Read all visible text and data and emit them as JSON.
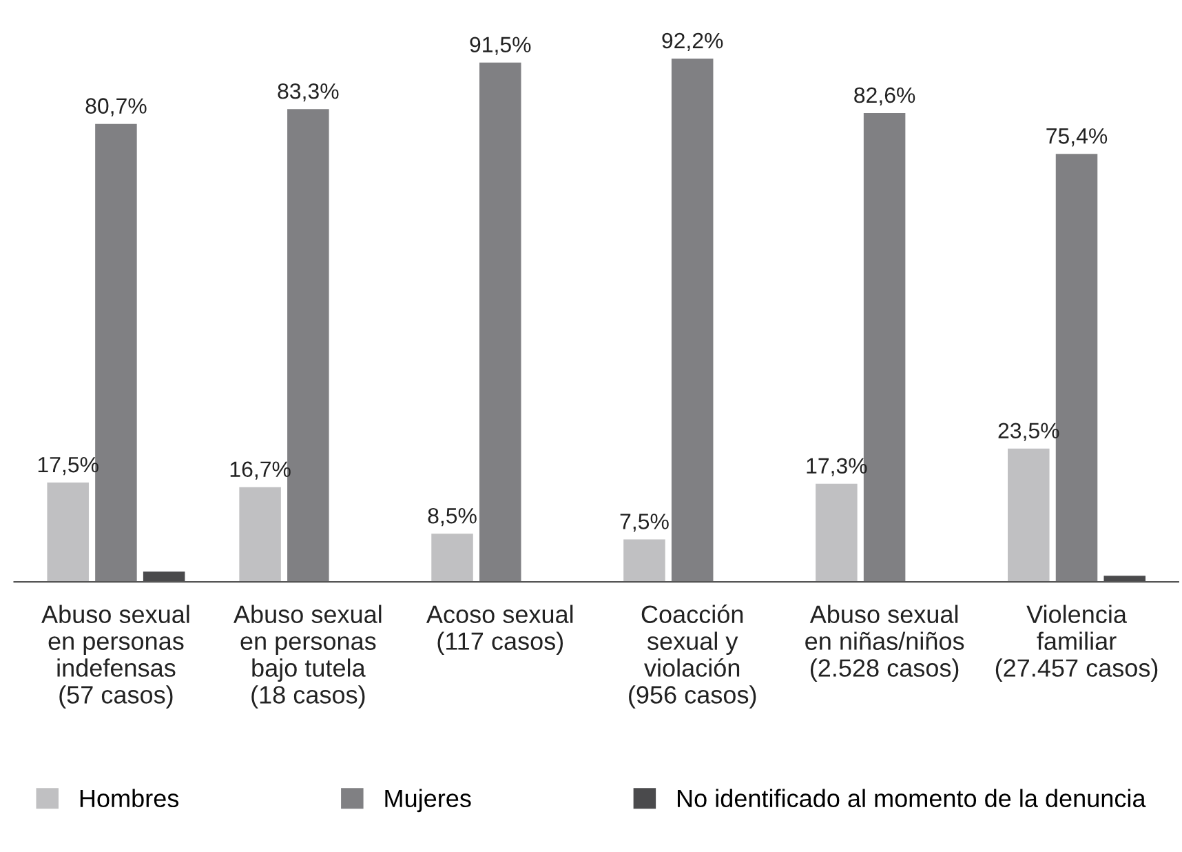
{
  "chart_data": {
    "type": "bar",
    "categories": [
      "Abuso sexual\nen personas\nindefensas\n(57 casos)",
      "Abuso sexual\nen personas\nbajo tutela\n(18 casos)",
      "Acoso sexual\n(117 casos)",
      "Coacción\nsexual y\nviolación\n(956 casos)",
      "Abuso sexual\nen niñas/niños\n(2.528 casos)",
      "Violencia\nfamiliar\n(27.457 casos)"
    ],
    "series": [
      {
        "name": "Hombres",
        "color": "#c0c0c2",
        "values": [
          17.5,
          16.7,
          8.5,
          7.5,
          17.3,
          23.5
        ],
        "value_labels": [
          "17,5%",
          "16,7%",
          "8,5%",
          "7,5%",
          "17,3%",
          "23,5%"
        ]
      },
      {
        "name": "Mujeres",
        "color": "#808083",
        "values": [
          80.7,
          83.3,
          91.5,
          92.2,
          82.6,
          75.4
        ],
        "value_labels": [
          "80,7%",
          "83,3%",
          "91,5%",
          "92,2%",
          "82,6%",
          "75,4%"
        ]
      },
      {
        "name": "No identificado al momento de la denuncia",
        "color": "#4a4a4c",
        "values": [
          1.8,
          0,
          0,
          0,
          0,
          1.1
        ]
      }
    ],
    "grid": false,
    "legend": "bottom"
  }
}
